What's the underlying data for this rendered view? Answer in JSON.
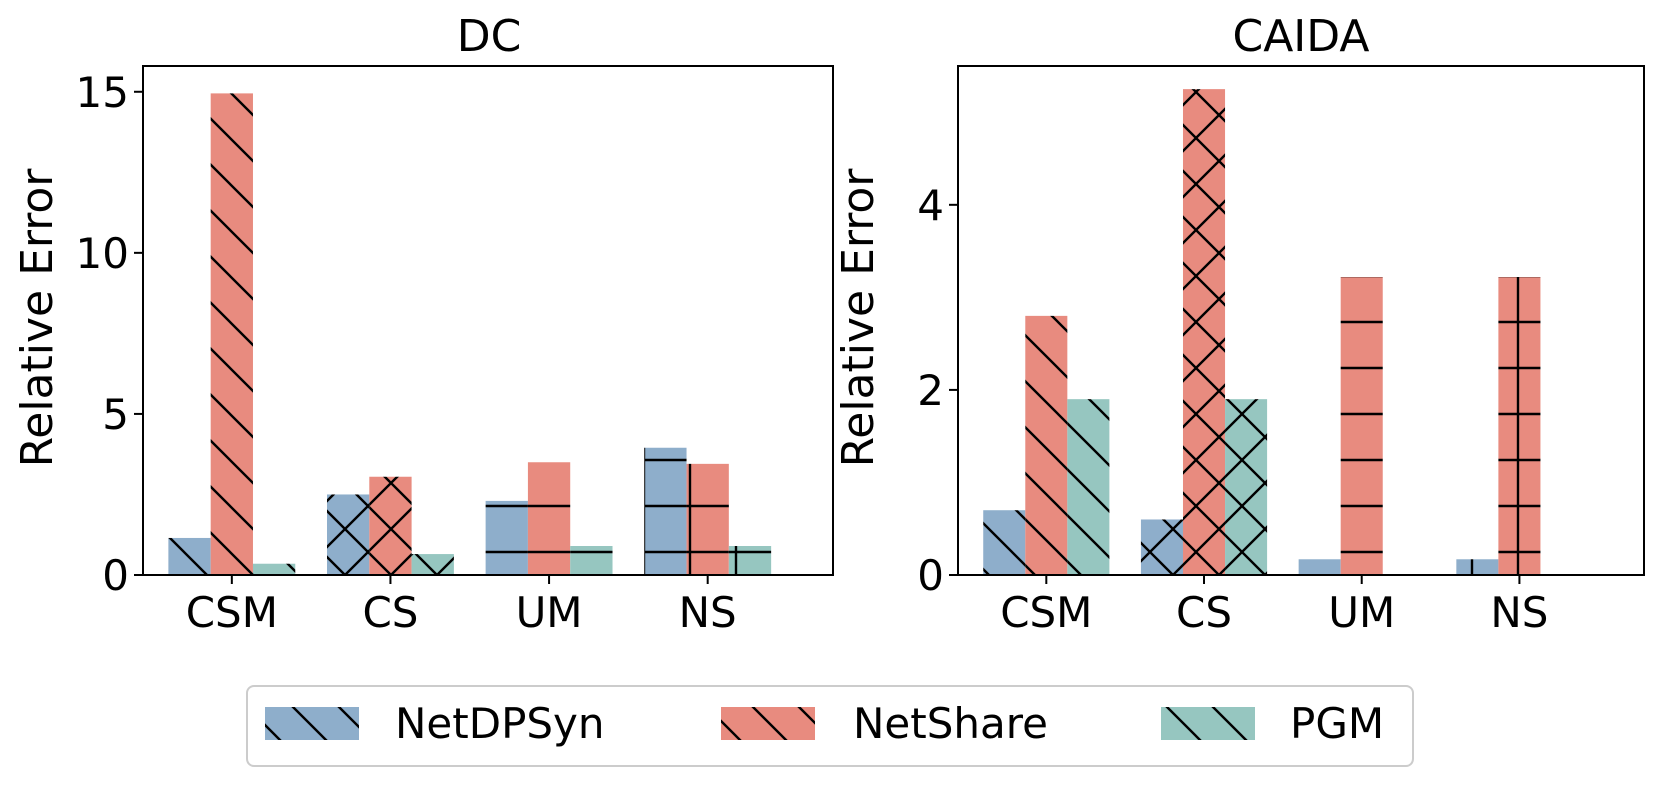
{
  "chart_data": [
    {
      "type": "bar",
      "title": "DC",
      "xlabel": "",
      "ylabel": "Relative Error",
      "categories": [
        "CSM",
        "CS",
        "UM",
        "NS"
      ],
      "ylim": [
        0,
        15.8
      ],
      "yticks": [
        0,
        5,
        10,
        15
      ],
      "series": [
        {
          "name": "NetDPSyn",
          "values": [
            1.15,
            2.5,
            2.3,
            3.95
          ]
        },
        {
          "name": "NetShare",
          "values": [
            14.95,
            3.05,
            3.5,
            3.45
          ]
        },
        {
          "name": "PGM",
          "values": [
            0.35,
            0.65,
            0.9,
            0.9
          ]
        }
      ],
      "hatches": [
        [
          "diag",
          "diag",
          "diag"
        ],
        [
          "cross",
          "cross",
          "cross"
        ],
        [
          "horiz",
          "horiz",
          "horiz"
        ],
        [
          "grid",
          "grid",
          "grid"
        ]
      ]
    },
    {
      "type": "bar",
      "title": "CAIDA",
      "xlabel": "",
      "ylabel": "Relative Error",
      "categories": [
        "CSM",
        "CS",
        "UM",
        "NS"
      ],
      "ylim": [
        0,
        5.5
      ],
      "yticks": [
        0,
        2,
        4
      ],
      "series": [
        {
          "name": "NetDPSyn",
          "values": [
            0.7,
            0.6,
            0.17,
            0.17
          ]
        },
        {
          "name": "NetShare",
          "values": [
            2.8,
            5.25,
            3.22,
            3.22
          ]
        },
        {
          "name": "PGM",
          "values": [
            1.9,
            1.9,
            0,
            0
          ]
        }
      ],
      "hatches": [
        [
          "diag",
          "diag",
          "diag"
        ],
        [
          "cross",
          "cross",
          "cross"
        ],
        [
          "horiz",
          "horiz",
          "horiz"
        ],
        [
          "grid",
          "grid",
          "grid"
        ]
      ]
    }
  ],
  "legend": [
    {
      "label": "NetDPSyn",
      "color": "#8eaecb"
    },
    {
      "label": "NetShare",
      "color": "#e88b7f"
    },
    {
      "label": "PGM",
      "color": "#96c6c0"
    }
  ],
  "colors": [
    "#8eaecb",
    "#e88b7f",
    "#96c6c0"
  ]
}
